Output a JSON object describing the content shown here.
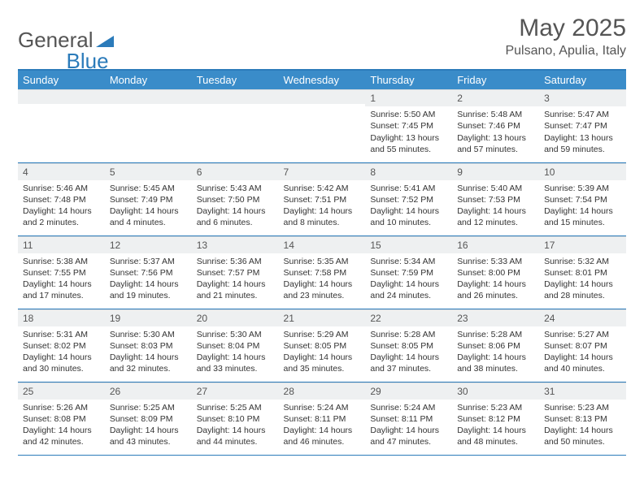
{
  "logo": {
    "text_gray": "General",
    "text_blue": "Blue"
  },
  "title": "May 2025",
  "location": "Pulsano, Apulia, Italy",
  "colors": {
    "header_bg": "#3a8cc9",
    "header_text": "#ffffff",
    "border": "#2b7bba",
    "daynum_bg": "#eef0f1",
    "text": "#333333",
    "logo_gray": "#555555",
    "logo_blue": "#2b7bba"
  },
  "day_headers": [
    "Sunday",
    "Monday",
    "Tuesday",
    "Wednesday",
    "Thursday",
    "Friday",
    "Saturday"
  ],
  "weeks": [
    [
      {
        "n": "",
        "sr": "",
        "ss": "",
        "dl": ""
      },
      {
        "n": "",
        "sr": "",
        "ss": "",
        "dl": ""
      },
      {
        "n": "",
        "sr": "",
        "ss": "",
        "dl": ""
      },
      {
        "n": "",
        "sr": "",
        "ss": "",
        "dl": ""
      },
      {
        "n": "1",
        "sr": "Sunrise: 5:50 AM",
        "ss": "Sunset: 7:45 PM",
        "dl": "Daylight: 13 hours and 55 minutes."
      },
      {
        "n": "2",
        "sr": "Sunrise: 5:48 AM",
        "ss": "Sunset: 7:46 PM",
        "dl": "Daylight: 13 hours and 57 minutes."
      },
      {
        "n": "3",
        "sr": "Sunrise: 5:47 AM",
        "ss": "Sunset: 7:47 PM",
        "dl": "Daylight: 13 hours and 59 minutes."
      }
    ],
    [
      {
        "n": "4",
        "sr": "Sunrise: 5:46 AM",
        "ss": "Sunset: 7:48 PM",
        "dl": "Daylight: 14 hours and 2 minutes."
      },
      {
        "n": "5",
        "sr": "Sunrise: 5:45 AM",
        "ss": "Sunset: 7:49 PM",
        "dl": "Daylight: 14 hours and 4 minutes."
      },
      {
        "n": "6",
        "sr": "Sunrise: 5:43 AM",
        "ss": "Sunset: 7:50 PM",
        "dl": "Daylight: 14 hours and 6 minutes."
      },
      {
        "n": "7",
        "sr": "Sunrise: 5:42 AM",
        "ss": "Sunset: 7:51 PM",
        "dl": "Daylight: 14 hours and 8 minutes."
      },
      {
        "n": "8",
        "sr": "Sunrise: 5:41 AM",
        "ss": "Sunset: 7:52 PM",
        "dl": "Daylight: 14 hours and 10 minutes."
      },
      {
        "n": "9",
        "sr": "Sunrise: 5:40 AM",
        "ss": "Sunset: 7:53 PM",
        "dl": "Daylight: 14 hours and 12 minutes."
      },
      {
        "n": "10",
        "sr": "Sunrise: 5:39 AM",
        "ss": "Sunset: 7:54 PM",
        "dl": "Daylight: 14 hours and 15 minutes."
      }
    ],
    [
      {
        "n": "11",
        "sr": "Sunrise: 5:38 AM",
        "ss": "Sunset: 7:55 PM",
        "dl": "Daylight: 14 hours and 17 minutes."
      },
      {
        "n": "12",
        "sr": "Sunrise: 5:37 AM",
        "ss": "Sunset: 7:56 PM",
        "dl": "Daylight: 14 hours and 19 minutes."
      },
      {
        "n": "13",
        "sr": "Sunrise: 5:36 AM",
        "ss": "Sunset: 7:57 PM",
        "dl": "Daylight: 14 hours and 21 minutes."
      },
      {
        "n": "14",
        "sr": "Sunrise: 5:35 AM",
        "ss": "Sunset: 7:58 PM",
        "dl": "Daylight: 14 hours and 23 minutes."
      },
      {
        "n": "15",
        "sr": "Sunrise: 5:34 AM",
        "ss": "Sunset: 7:59 PM",
        "dl": "Daylight: 14 hours and 24 minutes."
      },
      {
        "n": "16",
        "sr": "Sunrise: 5:33 AM",
        "ss": "Sunset: 8:00 PM",
        "dl": "Daylight: 14 hours and 26 minutes."
      },
      {
        "n": "17",
        "sr": "Sunrise: 5:32 AM",
        "ss": "Sunset: 8:01 PM",
        "dl": "Daylight: 14 hours and 28 minutes."
      }
    ],
    [
      {
        "n": "18",
        "sr": "Sunrise: 5:31 AM",
        "ss": "Sunset: 8:02 PM",
        "dl": "Daylight: 14 hours and 30 minutes."
      },
      {
        "n": "19",
        "sr": "Sunrise: 5:30 AM",
        "ss": "Sunset: 8:03 PM",
        "dl": "Daylight: 14 hours and 32 minutes."
      },
      {
        "n": "20",
        "sr": "Sunrise: 5:30 AM",
        "ss": "Sunset: 8:04 PM",
        "dl": "Daylight: 14 hours and 33 minutes."
      },
      {
        "n": "21",
        "sr": "Sunrise: 5:29 AM",
        "ss": "Sunset: 8:05 PM",
        "dl": "Daylight: 14 hours and 35 minutes."
      },
      {
        "n": "22",
        "sr": "Sunrise: 5:28 AM",
        "ss": "Sunset: 8:05 PM",
        "dl": "Daylight: 14 hours and 37 minutes."
      },
      {
        "n": "23",
        "sr": "Sunrise: 5:28 AM",
        "ss": "Sunset: 8:06 PM",
        "dl": "Daylight: 14 hours and 38 minutes."
      },
      {
        "n": "24",
        "sr": "Sunrise: 5:27 AM",
        "ss": "Sunset: 8:07 PM",
        "dl": "Daylight: 14 hours and 40 minutes."
      }
    ],
    [
      {
        "n": "25",
        "sr": "Sunrise: 5:26 AM",
        "ss": "Sunset: 8:08 PM",
        "dl": "Daylight: 14 hours and 42 minutes."
      },
      {
        "n": "26",
        "sr": "Sunrise: 5:25 AM",
        "ss": "Sunset: 8:09 PM",
        "dl": "Daylight: 14 hours and 43 minutes."
      },
      {
        "n": "27",
        "sr": "Sunrise: 5:25 AM",
        "ss": "Sunset: 8:10 PM",
        "dl": "Daylight: 14 hours and 44 minutes."
      },
      {
        "n": "28",
        "sr": "Sunrise: 5:24 AM",
        "ss": "Sunset: 8:11 PM",
        "dl": "Daylight: 14 hours and 46 minutes."
      },
      {
        "n": "29",
        "sr": "Sunrise: 5:24 AM",
        "ss": "Sunset: 8:11 PM",
        "dl": "Daylight: 14 hours and 47 minutes."
      },
      {
        "n": "30",
        "sr": "Sunrise: 5:23 AM",
        "ss": "Sunset: 8:12 PM",
        "dl": "Daylight: 14 hours and 48 minutes."
      },
      {
        "n": "31",
        "sr": "Sunrise: 5:23 AM",
        "ss": "Sunset: 8:13 PM",
        "dl": "Daylight: 14 hours and 50 minutes."
      }
    ]
  ]
}
